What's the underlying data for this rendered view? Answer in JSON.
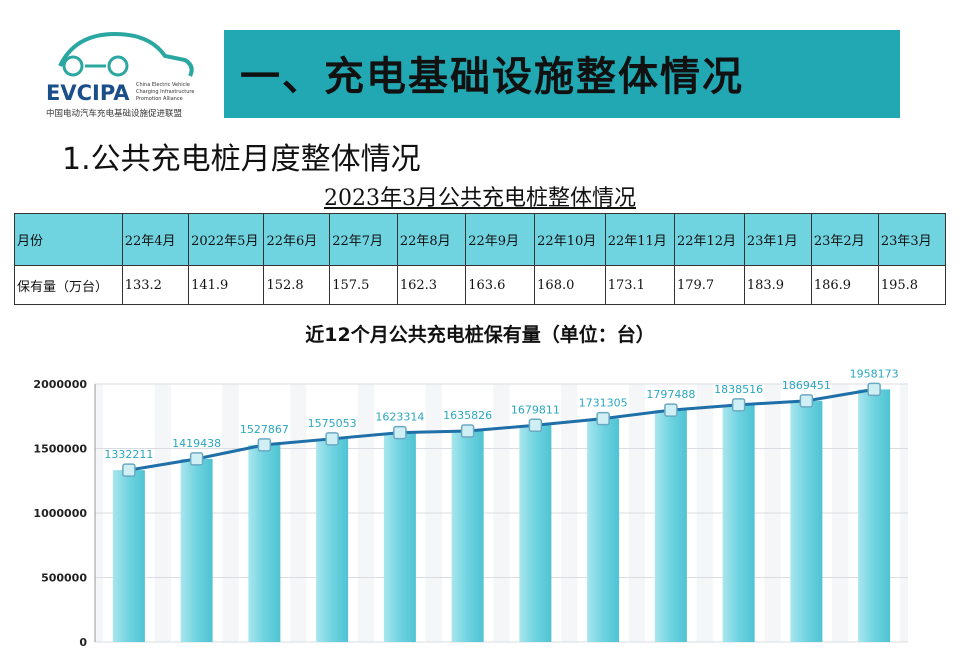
{
  "logo": {
    "name": "EVCIPA",
    "english": [
      "China Electric Vehicle",
      "Charging Infrastructure",
      "Promotion Alliance"
    ],
    "chinese": "中国电动汽车充电基础设施促进联盟"
  },
  "header": {
    "title": "一、充电基础设施整体情况",
    "subtitle": "1.公共充电桩月度整体情况"
  },
  "table": {
    "title": "2023年3月公共充电桩整体情况",
    "rows": [
      [
        "月份",
        "22年4月",
        "2022年5月",
        "22年6月",
        "22年7月",
        "22年8月",
        "22年9月",
        "22年10月",
        "22年11月",
        "22年12月",
        "23年1月",
        "23年2月",
        "23年3月"
      ],
      [
        "保有量（万台）",
        "133.2",
        "141.9",
        "152.8",
        "157.5",
        "162.3",
        "163.6",
        "168.0",
        "173.1",
        "179.7",
        "183.9",
        "186.9",
        "195.8"
      ]
    ]
  },
  "chart_data": {
    "type": "bar-line",
    "title": "近12个月公共充电桩保有量（单位：台）",
    "values": [
      1332211,
      1419438,
      1527867,
      1575053,
      1623314,
      1635826,
      1679811,
      1731305,
      1797488,
      1838516,
      1869451,
      1958173
    ],
    "color": "#6fd3e0",
    "line_color": "#1f6fa8",
    "label_color": "#2aa7c0",
    "ylim": [
      0,
      2000000
    ],
    "yticks": [
      0,
      500000,
      1000000,
      1500000,
      2000000
    ]
  }
}
